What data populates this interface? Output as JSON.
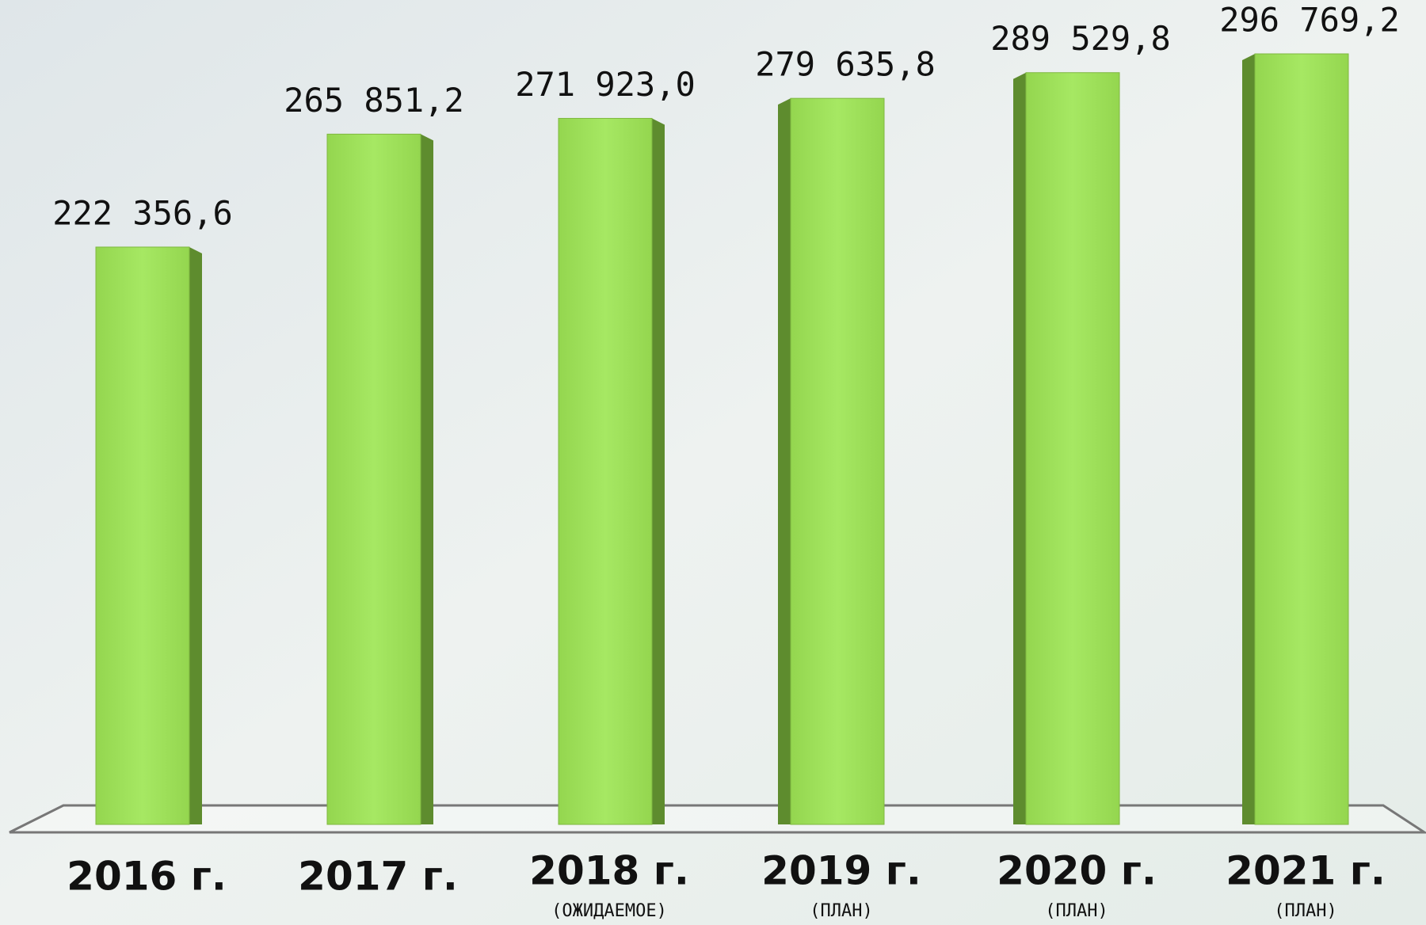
{
  "chart_data": {
    "type": "bar",
    "categories": [
      "2016 г.",
      "2017 г.",
      "2018 г.",
      "2019 г.",
      "2020 г.",
      "2021 г."
    ],
    "category_notes": [
      null,
      null,
      "(ОЖИДАЕМОЕ)",
      "(ПЛАН)",
      "(ПЛАН)",
      "(ПЛАН)"
    ],
    "values": [
      222356.6,
      265851.2,
      271923.0,
      279635.8,
      289529.8,
      296769.2
    ],
    "value_labels": [
      "222 356,6",
      "265 851,2",
      "271 923,0",
      "279 635,8",
      "289 529,8",
      "296 769,2"
    ],
    "color": "#9fe05a"
  }
}
